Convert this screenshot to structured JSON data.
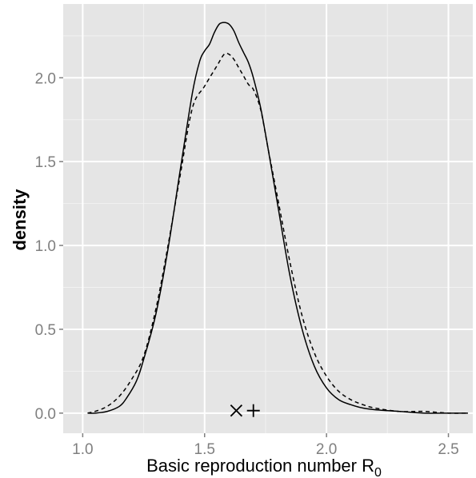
{
  "chart_data": {
    "type": "line",
    "title": "",
    "xlabel": {
      "main": "Basic reproduction number R",
      "sub": "0"
    },
    "ylabel": "density",
    "xlim": [
      0.92,
      2.6
    ],
    "ylim": [
      -0.12,
      2.44
    ],
    "grid": true,
    "legend": "none",
    "x_ticks": [
      {
        "value": 1.0,
        "label": "1.0"
      },
      {
        "value": 1.5,
        "label": "1.5"
      },
      {
        "value": 2.0,
        "label": "2.0"
      },
      {
        "value": 2.5,
        "label": "2.5"
      }
    ],
    "y_ticks": [
      {
        "value": 0.0,
        "label": "0.0"
      },
      {
        "value": 0.5,
        "label": "0.5"
      },
      {
        "value": 1.0,
        "label": "1.0"
      },
      {
        "value": 1.5,
        "label": "1.5"
      },
      {
        "value": 2.0,
        "label": "2.0"
      }
    ],
    "series": [
      {
        "style": "solid",
        "color": "#000000",
        "x": [
          1.02,
          1.05,
          1.1,
          1.15,
          1.18,
          1.22,
          1.25,
          1.3,
          1.35,
          1.4,
          1.45,
          1.48,
          1.5,
          1.52,
          1.54,
          1.56,
          1.58,
          1.6,
          1.62,
          1.64,
          1.66,
          1.68,
          1.7,
          1.73,
          1.76,
          1.8,
          1.85,
          1.9,
          1.95,
          2.0,
          2.05,
          2.1,
          2.15,
          2.2,
          2.3,
          2.4,
          2.5,
          2.58
        ],
        "y": [
          0.0,
          0.0,
          0.01,
          0.04,
          0.09,
          0.19,
          0.32,
          0.59,
          0.98,
          1.45,
          1.91,
          2.1,
          2.16,
          2.2,
          2.27,
          2.32,
          2.33,
          2.32,
          2.28,
          2.21,
          2.15,
          2.09,
          2.0,
          1.82,
          1.58,
          1.24,
          0.82,
          0.5,
          0.28,
          0.15,
          0.08,
          0.05,
          0.03,
          0.02,
          0.01,
          0.0,
          0.0,
          0.0
        ]
      },
      {
        "style": "dashed",
        "color": "#000000",
        "x": [
          1.02,
          1.05,
          1.1,
          1.15,
          1.2,
          1.25,
          1.3,
          1.35,
          1.4,
          1.45,
          1.5,
          1.55,
          1.58,
          1.6,
          1.62,
          1.64,
          1.66,
          1.68,
          1.7,
          1.73,
          1.76,
          1.8,
          1.85,
          1.9,
          1.95,
          2.0,
          2.05,
          2.1,
          2.15,
          2.2,
          2.3,
          2.4,
          2.5,
          2.58
        ],
        "y": [
          0.0,
          0.01,
          0.04,
          0.1,
          0.2,
          0.34,
          0.62,
          1.0,
          1.42,
          1.82,
          1.95,
          2.07,
          2.14,
          2.14,
          2.11,
          2.06,
          2.01,
          1.96,
          1.93,
          1.81,
          1.58,
          1.28,
          0.9,
          0.58,
          0.36,
          0.22,
          0.13,
          0.08,
          0.05,
          0.03,
          0.01,
          0.01,
          0.0,
          0.0
        ]
      }
    ],
    "markers": [
      {
        "shape": "cross-x",
        "x": 1.63,
        "y": 0.015
      },
      {
        "shape": "plus",
        "x": 1.7,
        "y": 0.015
      }
    ],
    "colors": {
      "panel": "#e5e5e5",
      "grid_major": "#ffffff",
      "grid_minor": "#f2f2f2",
      "tick_label": "#7f7f7f",
      "line": "#000000"
    }
  }
}
